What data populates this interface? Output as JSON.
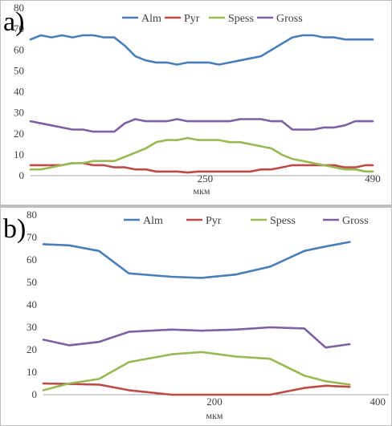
{
  "colors": {
    "Alm": "#4a7ebb",
    "Pyr": "#be4b48",
    "Spess": "#98b954",
    "Gross": "#7d60a0",
    "grid": "#d9d9d9",
    "axis": "#a6a6a6"
  },
  "chart_data": [
    {
      "type": "line",
      "panel_label": "a)",
      "xlabel": "мкм",
      "x_tick_labels": [
        {
          "x": 250,
          "label": "250"
        },
        {
          "x": 490,
          "label": "490"
        }
      ],
      "xlim": [
        0,
        490
      ],
      "ylim": [
        0,
        80
      ],
      "y_ticks": [
        0,
        10,
        20,
        30,
        40,
        50,
        60,
        70,
        80
      ],
      "grid": false,
      "legend": "top",
      "series": [
        {
          "name": "Alm",
          "x": [
            0,
            15,
            30,
            45,
            60,
            75,
            90,
            105,
            120,
            135,
            150,
            165,
            180,
            195,
            210,
            225,
            240,
            255,
            270,
            285,
            300,
            315,
            330,
            345,
            360,
            375,
            390,
            405,
            420,
            435,
            450,
            465,
            480,
            490
          ],
          "values": [
            65,
            67,
            66,
            67,
            66,
            67,
            67,
            66,
            66,
            62,
            57,
            55,
            54,
            54,
            53,
            54,
            54,
            54,
            53,
            54,
            55,
            56,
            57,
            60,
            63,
            66,
            67,
            67,
            66,
            66,
            65,
            65,
            65,
            65
          ]
        },
        {
          "name": "Pyr",
          "x": [
            0,
            15,
            30,
            45,
            60,
            75,
            90,
            105,
            120,
            135,
            150,
            165,
            180,
            195,
            210,
            225,
            240,
            255,
            270,
            285,
            300,
            315,
            330,
            345,
            360,
            375,
            390,
            405,
            420,
            435,
            450,
            465,
            480,
            490
          ],
          "values": [
            5,
            5,
            5,
            5,
            6,
            6,
            5,
            5,
            4,
            4,
            3,
            3,
            2,
            2,
            2,
            1.5,
            2,
            2,
            2,
            2,
            2,
            2,
            3,
            3,
            4,
            5,
            5,
            5,
            5,
            5,
            4,
            4,
            5,
            5
          ]
        },
        {
          "name": "Spess",
          "x": [
            0,
            15,
            30,
            45,
            60,
            75,
            90,
            105,
            120,
            135,
            150,
            165,
            180,
            195,
            210,
            225,
            240,
            255,
            270,
            285,
            300,
            315,
            330,
            345,
            360,
            375,
            390,
            405,
            420,
            435,
            450,
            465,
            480,
            490
          ],
          "values": [
            3,
            3,
            4,
            5,
            6,
            6,
            7,
            7,
            7,
            9,
            11,
            13,
            16,
            17,
            17,
            18,
            17,
            17,
            17,
            16,
            16,
            15,
            14,
            13,
            10,
            8,
            7,
            6,
            5,
            4,
            3,
            3,
            2,
            2
          ]
        },
        {
          "name": "Gross",
          "x": [
            0,
            15,
            30,
            45,
            60,
            75,
            90,
            105,
            120,
            135,
            150,
            165,
            180,
            195,
            210,
            225,
            240,
            255,
            270,
            285,
            300,
            315,
            330,
            345,
            360,
            375,
            390,
            405,
            420,
            435,
            450,
            465,
            480,
            490
          ],
          "values": [
            26,
            25,
            24,
            23,
            22,
            22,
            21,
            21,
            21,
            25,
            27,
            26,
            26,
            26,
            27,
            26,
            26,
            26,
            26,
            26,
            27,
            27,
            27,
            26,
            26,
            22,
            22,
            22,
            23,
            23,
            24,
            26,
            26,
            26
          ]
        }
      ]
    },
    {
      "type": "line",
      "panel_label": "b)",
      "xlabel": "мкм",
      "x_tick_labels": [
        {
          "x": 200,
          "label": "200"
        },
        {
          "x": 400,
          "label": "400"
        }
      ],
      "xlim": [
        0,
        400
      ],
      "ylim": [
        0,
        80
      ],
      "y_ticks": [
        0,
        10,
        20,
        30,
        40,
        50,
        60,
        70,
        80
      ],
      "grid": false,
      "legend": "top",
      "series": [
        {
          "name": "Alm",
          "x": [
            0,
            30,
            65,
            100,
            150,
            185,
            225,
            265,
            305,
            330,
            358
          ],
          "values": [
            67,
            66.5,
            64,
            54,
            52.5,
            52,
            53.5,
            57,
            64,
            66,
            68
          ]
        },
        {
          "name": "Pyr",
          "x": [
            0,
            30,
            65,
            100,
            150,
            185,
            225,
            265,
            305,
            330,
            358
          ],
          "values": [
            5,
            4.8,
            4.5,
            2,
            0,
            0,
            0,
            0,
            3,
            4,
            3.5
          ]
        },
        {
          "name": "Spess",
          "x": [
            0,
            30,
            65,
            100,
            150,
            185,
            225,
            265,
            305,
            330,
            358
          ],
          "values": [
            2,
            5,
            7,
            14.5,
            18,
            19,
            17,
            16,
            8.5,
            6,
            4.5
          ]
        },
        {
          "name": "Gross",
          "x": [
            0,
            30,
            65,
            100,
            150,
            185,
            225,
            265,
            305,
            330,
            358
          ],
          "values": [
            24.5,
            22,
            23.5,
            28,
            29,
            28.5,
            29,
            30,
            29.5,
            21,
            22.5
          ]
        }
      ]
    }
  ]
}
